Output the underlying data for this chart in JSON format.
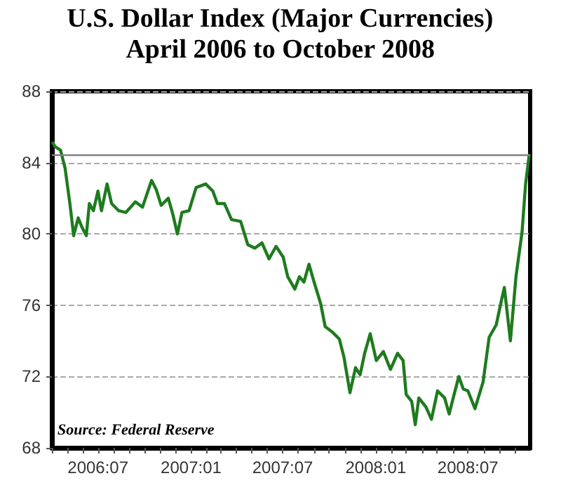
{
  "chart_data": {
    "type": "line",
    "title": "U.S. Dollar Index (Major Currencies)",
    "subtitle": "April 2006 to October 2008",
    "annotations": [
      "Source: Federal Reserve"
    ],
    "x": [
      "2006-04-03",
      "2006-04-07",
      "2006-04-18",
      "2006-04-27",
      "2006-05-07",
      "2006-05-14",
      "2006-05-23",
      "2006-05-30",
      "2006-06-08",
      "2006-06-14",
      "2006-06-22",
      "2006-07-01",
      "2006-07-08",
      "2006-07-19",
      "2006-07-28",
      "2006-08-11",
      "2006-08-25",
      "2006-09-13",
      "2006-09-27",
      "2006-10-15",
      "2006-10-24",
      "2006-11-03",
      "2006-11-17",
      "2006-11-26",
      "2006-12-05",
      "2006-12-14",
      "2006-12-28",
      "2007-01-11",
      "2007-01-30",
      "2007-02-13",
      "2007-02-22",
      "2007-03-08",
      "2007-03-22",
      "2007-04-09",
      "2007-04-23",
      "2007-05-07",
      "2007-05-21",
      "2007-06-04",
      "2007-06-18",
      "2007-07-02",
      "2007-07-11",
      "2007-07-25",
      "2007-08-03",
      "2007-08-12",
      "2007-08-22",
      "2007-08-31",
      "2007-09-14",
      "2007-09-23",
      "2007-10-07",
      "2007-10-21",
      "2007-10-30",
      "2007-11-11",
      "2007-11-22",
      "2007-12-01",
      "2007-12-10",
      "2007-12-21",
      "2008-01-02",
      "2008-01-16",
      "2008-01-30",
      "2008-02-13",
      "2008-02-24",
      "2008-03-01",
      "2008-03-12",
      "2008-03-19",
      "2008-03-26",
      "2008-04-09",
      "2008-04-20",
      "2008-05-02",
      "2008-05-16",
      "2008-05-25",
      "2008-06-02",
      "2008-06-13",
      "2008-06-22",
      "2008-07-01",
      "2008-07-15",
      "2008-07-31",
      "2008-08-12",
      "2008-08-26",
      "2008-09-04",
      "2008-09-11",
      "2008-09-23",
      "2008-10-04",
      "2008-10-16",
      "2008-10-23",
      "2008-10-30"
    ],
    "series": [
      {
        "color": "#1e7b1e",
        "values": [
          85.1,
          84.9,
          84.7,
          83.7,
          81.6,
          79.9,
          80.9,
          80.4,
          79.9,
          81.7,
          81.3,
          82.4,
          81.3,
          82.8,
          81.7,
          81.3,
          81.2,
          81.8,
          81.5,
          83.0,
          82.5,
          81.6,
          82.0,
          81.1,
          80.0,
          81.2,
          81.3,
          82.6,
          82.8,
          82.4,
          81.7,
          81.7,
          80.8,
          80.7,
          79.4,
          79.2,
          79.5,
          78.6,
          79.3,
          78.7,
          77.6,
          76.9,
          77.6,
          77.3,
          78.3,
          77.4,
          76.1,
          74.8,
          74.5,
          74.1,
          73.1,
          71.1,
          72.5,
          72.1,
          73.3,
          74.4,
          72.9,
          73.4,
          72.4,
          73.3,
          72.9,
          71.0,
          70.6,
          69.3,
          70.8,
          70.3,
          69.6,
          71.2,
          70.8,
          69.9,
          70.8,
          72.0,
          71.3,
          71.2,
          70.2,
          71.7,
          74.2,
          74.9,
          76.1,
          77.0,
          74.0,
          77.6,
          80.1,
          82.8,
          84.4
        ]
      }
    ],
    "xlim": [
      "2006-04-01",
      "2008-11-01"
    ],
    "xticks": [
      {
        "value": "2006-04-01",
        "label": null
      },
      {
        "value": "2006-05-01",
        "label": null
      },
      {
        "value": "2006-06-01",
        "label": null
      },
      {
        "value": "2006-07-01",
        "label": "2006:07"
      },
      {
        "value": "2006-08-01",
        "label": null
      },
      {
        "value": "2006-09-01",
        "label": null
      },
      {
        "value": "2006-10-01",
        "label": null
      },
      {
        "value": "2006-11-01",
        "label": null
      },
      {
        "value": "2006-12-01",
        "label": null
      },
      {
        "value": "2007-01-01",
        "label": "2007:01"
      },
      {
        "value": "2007-02-01",
        "label": null
      },
      {
        "value": "2007-03-01",
        "label": null
      },
      {
        "value": "2007-04-01",
        "label": null
      },
      {
        "value": "2007-05-01",
        "label": null
      },
      {
        "value": "2007-06-01",
        "label": null
      },
      {
        "value": "2007-07-01",
        "label": "2007:07"
      },
      {
        "value": "2007-08-01",
        "label": null
      },
      {
        "value": "2007-09-01",
        "label": null
      },
      {
        "value": "2007-10-01",
        "label": null
      },
      {
        "value": "2007-11-01",
        "label": null
      },
      {
        "value": "2007-12-01",
        "label": null
      },
      {
        "value": "2008-01-01",
        "label": "2008:01"
      },
      {
        "value": "2008-02-01",
        "label": null
      },
      {
        "value": "2008-03-01",
        "label": null
      },
      {
        "value": "2008-04-01",
        "label": null
      },
      {
        "value": "2008-05-01",
        "label": null
      },
      {
        "value": "2008-06-01",
        "label": null
      },
      {
        "value": "2008-07-01",
        "label": "2008:07"
      },
      {
        "value": "2008-08-01",
        "label": null
      },
      {
        "value": "2008-09-01",
        "label": null
      },
      {
        "value": "2008-10-01",
        "label": null
      }
    ],
    "ylim": [
      68,
      88
    ],
    "yticks": [
      68,
      72,
      76,
      80,
      84,
      88
    ],
    "grid": "y",
    "line_style": "solid",
    "marker": "none",
    "ref_lines": [
      {
        "axis": "y",
        "value": 84.4,
        "color": "#808080"
      }
    ]
  }
}
